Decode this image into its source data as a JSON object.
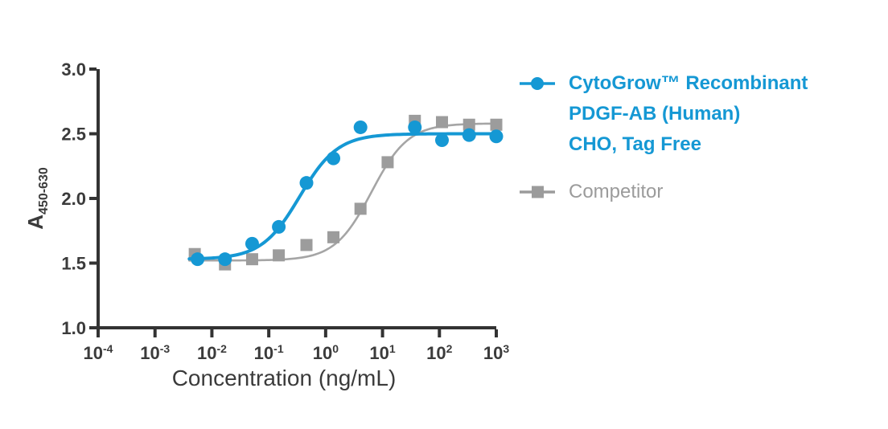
{
  "chart_data": {
    "type": "scatter",
    "title": "",
    "xlabel": "Concentration (ng/mL)",
    "ylabel": {
      "base": "A",
      "subscript": "450-630"
    },
    "x_scale": "log",
    "x_tick_base": "10",
    "x_tick_exponents": [
      -4,
      -3,
      -2,
      -1,
      0,
      1,
      2,
      3
    ],
    "xlim_exponents": [
      -4,
      3
    ],
    "ylim": [
      1.0,
      3.0
    ],
    "y_ticks": [
      "3.0",
      "2.5",
      "2.0",
      "1.5",
      "1.0"
    ],
    "grid": false,
    "legend_position": "right",
    "axis_color": "#333333",
    "tick_label_color": "#3b3b3b",
    "series": [
      {
        "name": "Competitor",
        "marker": "square",
        "marker_color": "#9c9c9c",
        "line_color": "#a5a5a5",
        "x": [
          0.005,
          0.017,
          0.051,
          0.15,
          0.46,
          1.37,
          4.1,
          12.3,
          37,
          111,
          333,
          1000
        ],
        "y": [
          1.57,
          1.49,
          1.53,
          1.56,
          1.64,
          1.7,
          1.92,
          2.28,
          2.6,
          2.59,
          2.57,
          2.57
        ],
        "fit": {
          "bottom": 1.52,
          "top": 2.58,
          "ec50": 6.4,
          "hill": 1.35
        },
        "curve_range": [
          0.004,
          1100
        ]
      },
      {
        "name": "CytoGrow™ Recombinant PDGF-AB (Human) CHO, Tag Free",
        "marker": "circle",
        "marker_color": "#1598d4",
        "line_color": "#1598d4",
        "x": [
          0.0056,
          0.017,
          0.051,
          0.15,
          0.46,
          1.37,
          4.1,
          37,
          111,
          333,
          1000
        ],
        "y": [
          1.53,
          1.53,
          1.65,
          1.78,
          2.12,
          2.31,
          2.55,
          2.55,
          2.45,
          2.49,
          2.48
        ],
        "fit": {
          "bottom": 1.53,
          "top": 2.5,
          "ec50": 0.35,
          "hill": 1.3
        },
        "curve_range": [
          0.004,
          1100
        ]
      }
    ]
  },
  "legend": {
    "items": [
      {
        "id": "cytogrow",
        "marker": "circle",
        "color": "#1598d4",
        "lines": [
          "CytoGrow™ Recombinant",
          "PDGF-AB (Human)",
          "CHO, Tag Free"
        ]
      },
      {
        "id": "competitor",
        "marker": "square",
        "color": "#9b9b9b",
        "lines": [
          "Competitor"
        ]
      }
    ]
  }
}
